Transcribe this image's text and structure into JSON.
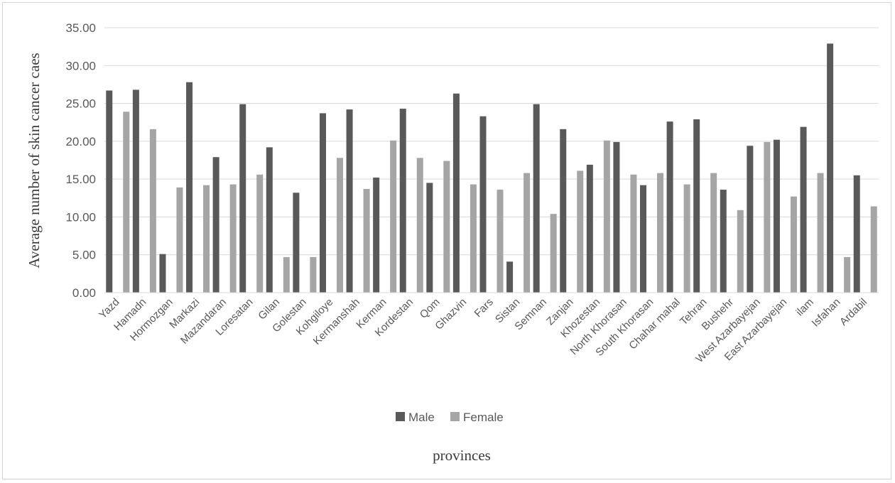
{
  "chart_data": {
    "type": "bar",
    "title": "",
    "xlabel": "provinces",
    "ylabel": "Average number of skin cancer caes",
    "ylim": [
      0,
      35
    ],
    "ytick_step": 5,
    "ytick_labels": [
      "0.00",
      "5.00",
      "10.00",
      "15.00",
      "20.00",
      "25.00",
      "30.00",
      "35.00"
    ],
    "grid": true,
    "legend_position": "bottom",
    "categories": [
      "Yazd",
      "Hamadn",
      "Hormozgan",
      "Markazi",
      "Mazandaran",
      "Loresatan",
      "Gilan",
      "Golestan",
      "Kohgiloye",
      "Kermanshah",
      "Kerman",
      "Kordestan",
      "Qom",
      "Ghazvin",
      "Fars",
      "Sistan",
      "Semnan",
      "Zanjan",
      "Khozestan",
      "North Khorasan",
      "South Khorasan",
      "Chahar mahal",
      "Tehran",
      "Bushehr",
      "West Azarbayejan",
      "East Azarbayejan",
      "ilam",
      "Isfahan",
      "Ardabil"
    ],
    "series": [
      {
        "name": "Male",
        "color": "#595959",
        "values": [
          26.7,
          26.8,
          5.1,
          27.8,
          17.9,
          24.9,
          19.2,
          13.2,
          23.7,
          24.2,
          15.2,
          24.3,
          14.5,
          26.3,
          23.3,
          4.1,
          24.9,
          21.6,
          16.9,
          19.9,
          14.2,
          22.6,
          22.9,
          13.6,
          19.4,
          20.2,
          21.9,
          32.9,
          15.5
        ]
      },
      {
        "name": "Female",
        "color": "#a5a5a5",
        "values": [
          23.9,
          21.6,
          13.9,
          14.2,
          14.3,
          15.6,
          4.7,
          4.7,
          17.8,
          13.7,
          20.1,
          17.8,
          17.4,
          14.3,
          13.6,
          15.8,
          10.4,
          16.1,
          20.1,
          15.6,
          15.8,
          14.3,
          15.8,
          10.9,
          19.9,
          12.7,
          15.8,
          4.7,
          11.4
        ]
      }
    ]
  }
}
